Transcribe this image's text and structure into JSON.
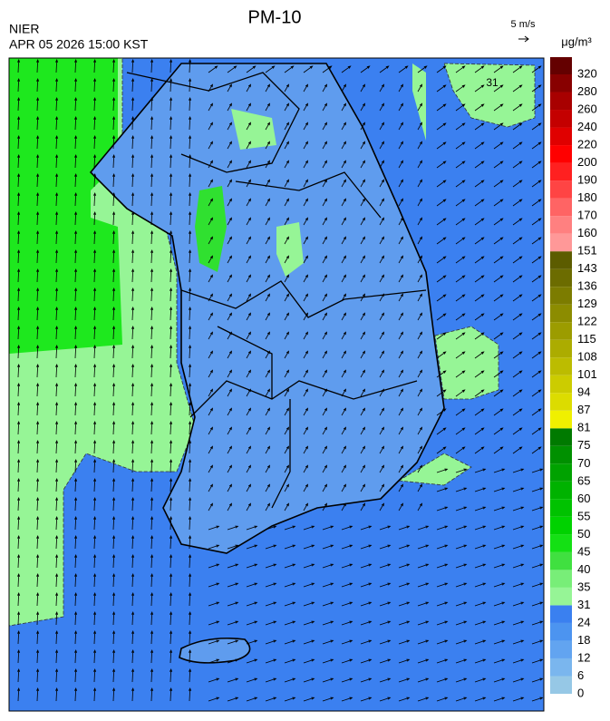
{
  "header": {
    "title": "PM-10",
    "agency": "NIER",
    "timestamp": "APR 05 2026 15:00 KST",
    "wind_scale": "5 m/s"
  },
  "map": {
    "contour_label": "31"
  },
  "legend": {
    "unit": "μg/m³",
    "labels": [
      0,
      6,
      12,
      18,
      24,
      31,
      35,
      40,
      45,
      50,
      55,
      60,
      65,
      70,
      75,
      81,
      87,
      94,
      101,
      108,
      115,
      122,
      129,
      136,
      143,
      151,
      160,
      170,
      180,
      190,
      200,
      220,
      240,
      260,
      280,
      320
    ],
    "colors": [
      "#96c8e6",
      "#7ab6ee",
      "#62a4f0",
      "#4c94f0",
      "#3a80f0",
      "#96f596",
      "#78ee78",
      "#40e040",
      "#14e014",
      "#00d200",
      "#00c200",
      "#00b200",
      "#00a200",
      "#009000",
      "#007a00",
      "#f0f000",
      "#dcdc00",
      "#cccc00",
      "#bcbc00",
      "#acac00",
      "#9c9c00",
      "#8c8c00",
      "#7c7c00",
      "#6c6c00",
      "#5c5c00",
      "#ff9898",
      "#ff8080",
      "#ff6464",
      "#ff4444",
      "#ff2020",
      "#ff0000",
      "#e00000",
      "#c40000",
      "#a80000",
      "#880000",
      "#640000"
    ]
  }
}
